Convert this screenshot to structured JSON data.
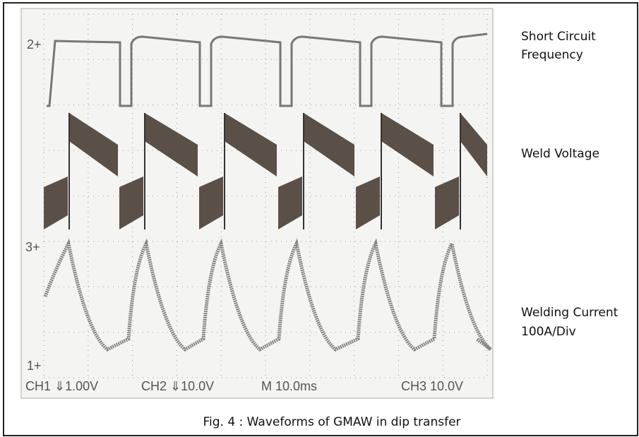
{
  "scope": {
    "channel_markers": [
      "2+",
      "3+",
      "1+"
    ],
    "readouts": [
      "CH1 ⇓1.00V",
      "CH2 ⇓10.0V",
      "M 10.0ms",
      "CH3 10.0V"
    ]
  },
  "labels": {
    "short_circuit": [
      "Short Circuit",
      "Frequency"
    ],
    "weld_voltage": "Weld Voltage",
    "welding_current": [
      "Welding Current",
      "100A/Div"
    ]
  },
  "caption": "Fig. 4 : Waveforms of GMAW in dip transfer"
}
